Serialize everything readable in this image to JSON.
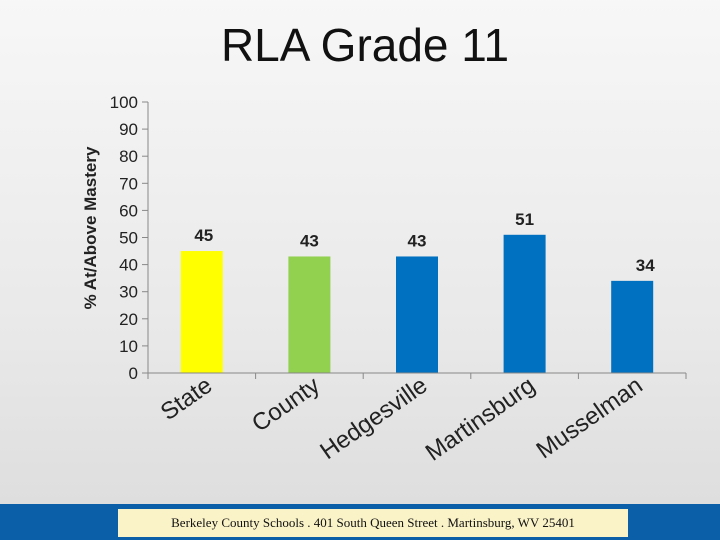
{
  "chart_data": {
    "type": "bar",
    "title": "RLA Grade 11",
    "ylabel": "% At/Above Mastery",
    "xlabel": "",
    "ylim": [
      0,
      100
    ],
    "yticks": [
      0,
      10,
      20,
      30,
      40,
      50,
      60,
      70,
      80,
      90,
      100
    ],
    "grid": false,
    "categories": [
      "State",
      "County",
      "Hedgesville",
      "Martinsburg",
      "Musselman"
    ],
    "values": [
      45,
      43,
      43,
      51,
      34
    ],
    "bar_colors": [
      "#ffff00",
      "#92d050",
      "#0070c0",
      "#0070c0",
      "#0070c0"
    ]
  },
  "footer": {
    "text": "Berkeley County Schools . 401 South Queen Street . Martinsburg, WV  25401"
  },
  "colors": {
    "footer_bar": "#0b5ea8",
    "footer_box": "#fbf3c8",
    "axis": "#888888"
  }
}
